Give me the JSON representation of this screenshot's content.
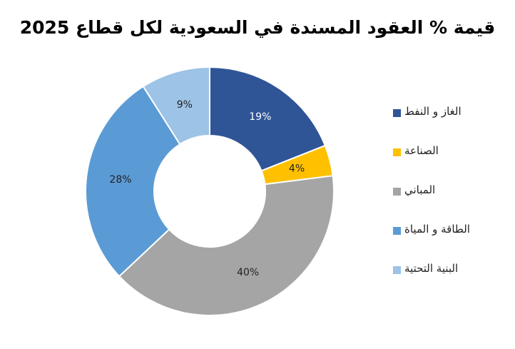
{
  "chart_data": {
    "type": "pie",
    "variant": "donut",
    "title": "قيمة % العقود المسندة في السعودية لكل قطاع 2025",
    "legend_position": "right",
    "categories": [
      "الغاز و النفط",
      "الصناعة",
      "المباني",
      "الطاقة و المياة",
      "البنية التحتية"
    ],
    "values": [
      19,
      4,
      40,
      28,
      9
    ],
    "data_labels": [
      "19%",
      "4%",
      "40%",
      "28%",
      "9%"
    ],
    "colors": [
      "#2F5597",
      "#FFC000",
      "#A5A5A5",
      "#5B9BD5",
      "#9DC3E6"
    ],
    "label_colors": [
      "#ffffff",
      "#222222",
      "#222222",
      "#222222",
      "#222222"
    ]
  }
}
